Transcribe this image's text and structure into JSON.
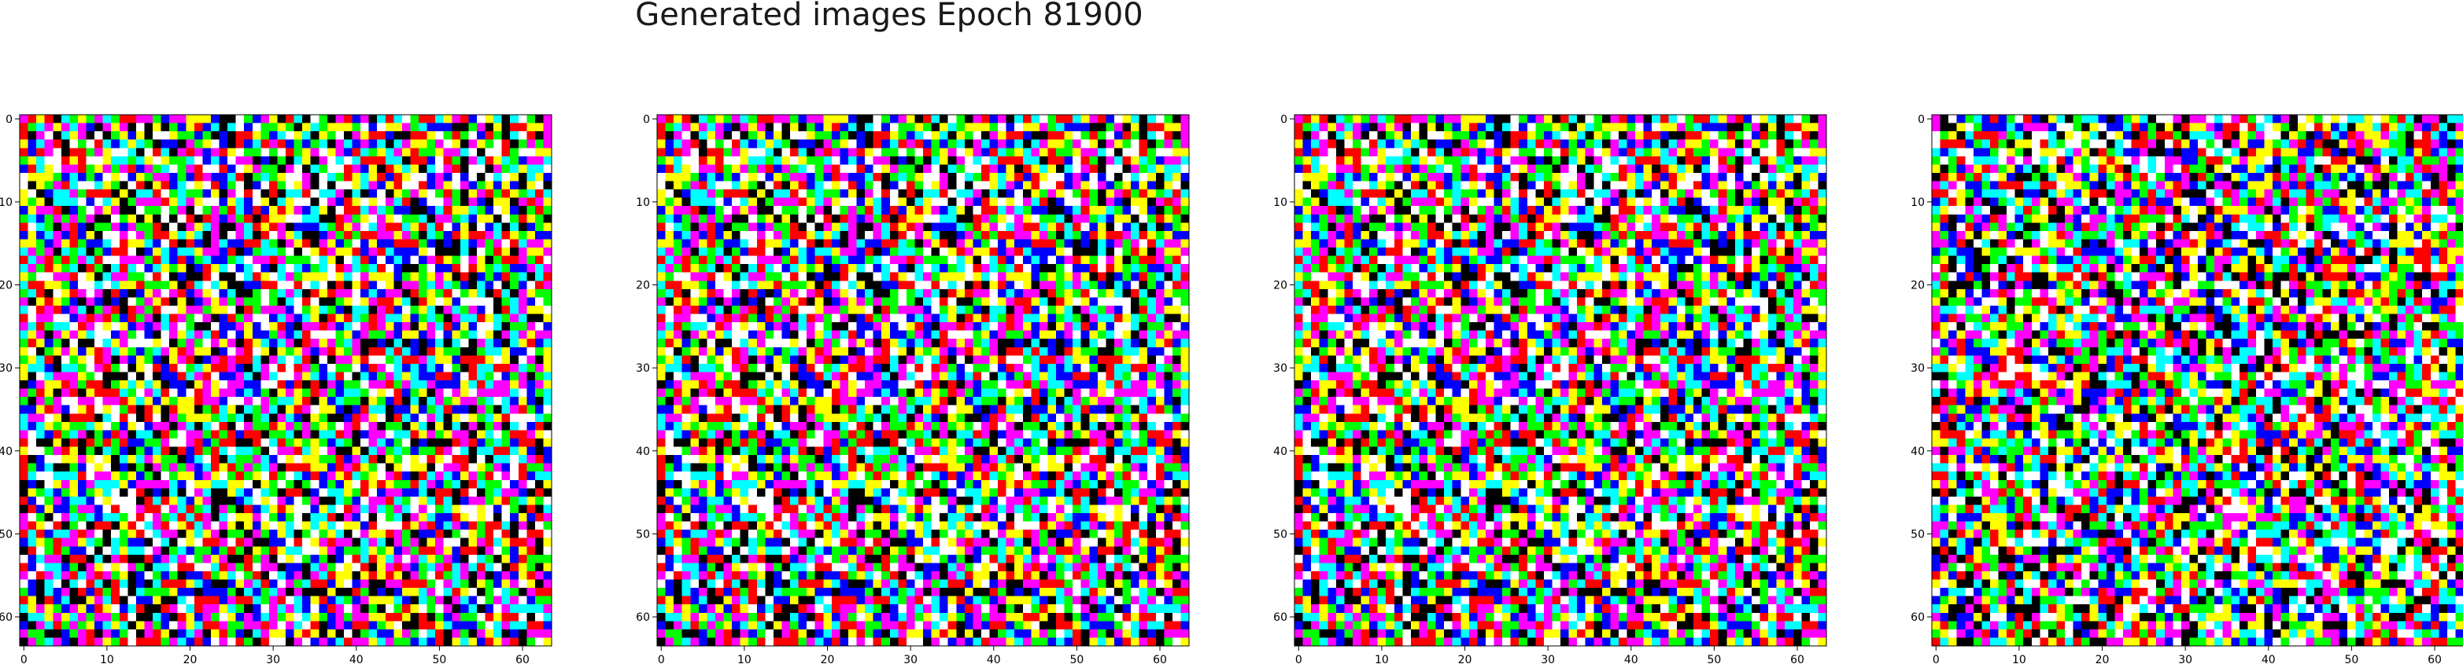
{
  "figure": {
    "title": "Generated images Epoch 81900"
  },
  "chart_data": [
    {
      "type": "heatmap",
      "description_of_marks": "64x64 grid of saturated RGB noise pixels",
      "xlim": [
        0,
        63
      ],
      "ylim": [
        63,
        0
      ],
      "x_ticks": [
        0,
        10,
        20,
        30,
        40,
        50,
        60
      ],
      "y_ticks": [
        0,
        10,
        20,
        30,
        40,
        50,
        60
      ],
      "grid_size": 64,
      "palette": [
        "#000000",
        "#ff0000",
        "#00ff00",
        "#0000ff",
        "#ffff00",
        "#ff00ff",
        "#00ffff",
        "#ffffff"
      ],
      "seed": 17
    },
    {
      "type": "heatmap",
      "description_of_marks": "64x64 grid of saturated RGB noise pixels",
      "xlim": [
        0,
        63
      ],
      "ylim": [
        63,
        0
      ],
      "x_ticks": [
        0,
        10,
        20,
        30,
        40,
        50,
        60
      ],
      "y_ticks": [
        0,
        10,
        20,
        30,
        40,
        50,
        60
      ],
      "grid_size": 64,
      "palette": [
        "#000000",
        "#ff0000",
        "#00ff00",
        "#0000ff",
        "#ffff00",
        "#ff00ff",
        "#00ffff",
        "#ffffff"
      ],
      "seed": 17
    },
    {
      "type": "heatmap",
      "description_of_marks": "64x64 grid of saturated RGB noise pixels",
      "xlim": [
        0,
        63
      ],
      "ylim": [
        63,
        0
      ],
      "x_ticks": [
        0,
        10,
        20,
        30,
        40,
        50,
        60
      ],
      "y_ticks": [
        0,
        10,
        20,
        30,
        40,
        50,
        60
      ],
      "grid_size": 64,
      "palette": [
        "#000000",
        "#ff0000",
        "#00ff00",
        "#0000ff",
        "#ffff00",
        "#ff00ff",
        "#00ffff",
        "#ffffff"
      ],
      "seed": 17
    },
    {
      "type": "heatmap",
      "description_of_marks": "64x64 grid of saturated RGB noise pixels",
      "xlim": [
        0,
        63
      ],
      "ylim": [
        63,
        0
      ],
      "x_ticks": [
        0,
        10,
        20,
        30,
        40,
        50,
        60
      ],
      "y_ticks": [
        0,
        10,
        20,
        30,
        40,
        50,
        60
      ],
      "grid_size": 64,
      "palette": [
        "#000000",
        "#ff0000",
        "#00ff00",
        "#0000ff",
        "#ffff00",
        "#ff00ff",
        "#00ffff",
        "#ffffff"
      ],
      "seed": 91
    }
  ]
}
